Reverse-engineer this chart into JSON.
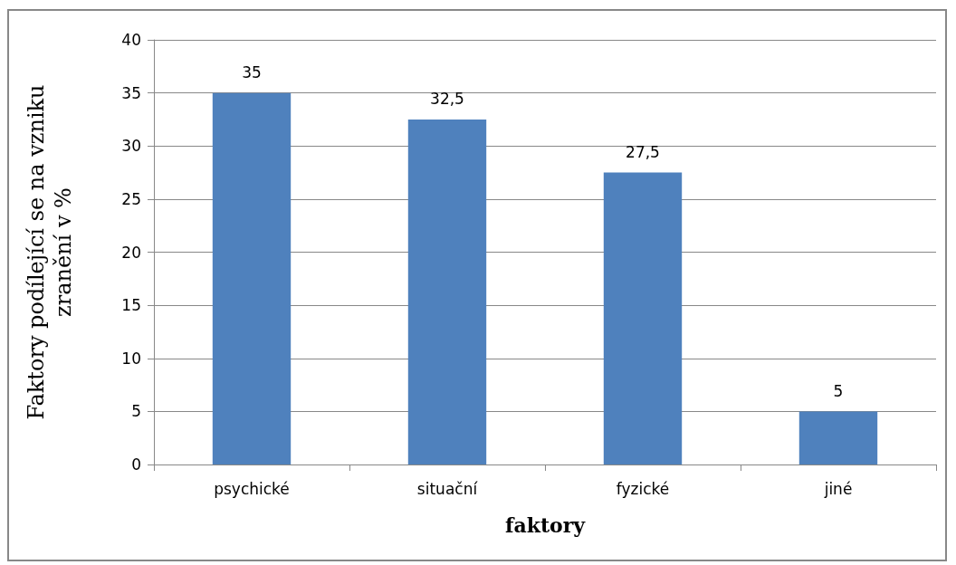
{
  "chart_data": {
    "type": "bar",
    "xlabel": "faktory",
    "ylabel": "Faktory podílející se na vzniku zranění v %",
    "categories": [
      "psychické",
      "situační",
      "fyzické",
      "jiné"
    ],
    "values": [
      35,
      32.5,
      27.5,
      5
    ],
    "value_labels": [
      "35",
      "32,5",
      "27,5",
      "5"
    ],
    "color": "#4f81bd",
    "ylim": [
      0,
      40
    ],
    "yticks": [
      0,
      5,
      10,
      15,
      20,
      25,
      30,
      35,
      40
    ],
    "grid": "y"
  }
}
